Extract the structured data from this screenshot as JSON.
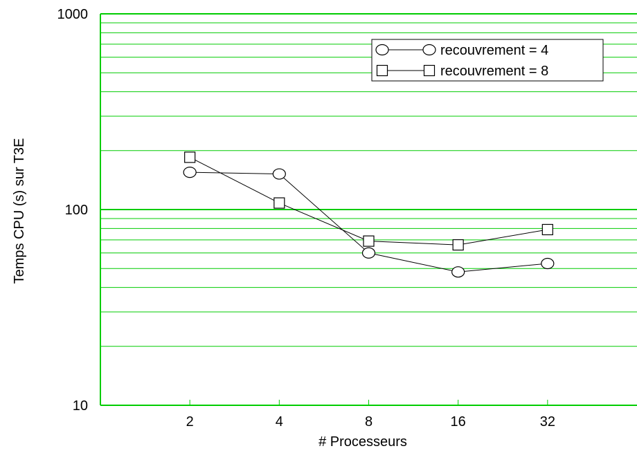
{
  "chart_data": {
    "type": "line",
    "title": "",
    "xlabel": "# Processeurs",
    "ylabel": "Temps CPU (s) sur T3E",
    "x_scale": "log2",
    "y_scale": "log10",
    "xlim": [
      1,
      64
    ],
    "ylim": [
      10,
      1000
    ],
    "x_ticks": [
      2,
      4,
      8,
      16,
      32
    ],
    "x_tick_labels": [
      "2",
      "4",
      "8",
      "16",
      "32"
    ],
    "y_ticks": [
      10,
      100,
      1000
    ],
    "y_tick_labels": [
      "10",
      "100",
      "1000"
    ],
    "grid": "horizontal",
    "grid_color": "#00cc00",
    "legend_position": "top-right",
    "series": [
      {
        "name": "recouvrement = 4",
        "marker": "circle",
        "x": [
          2,
          4,
          8,
          16,
          32
        ],
        "values": [
          155,
          152,
          60,
          48,
          53
        ]
      },
      {
        "name": "recouvrement = 8",
        "marker": "square",
        "x": [
          2,
          4,
          8,
          16,
          32
        ],
        "values": [
          185,
          108,
          69,
          66,
          79
        ]
      }
    ]
  }
}
